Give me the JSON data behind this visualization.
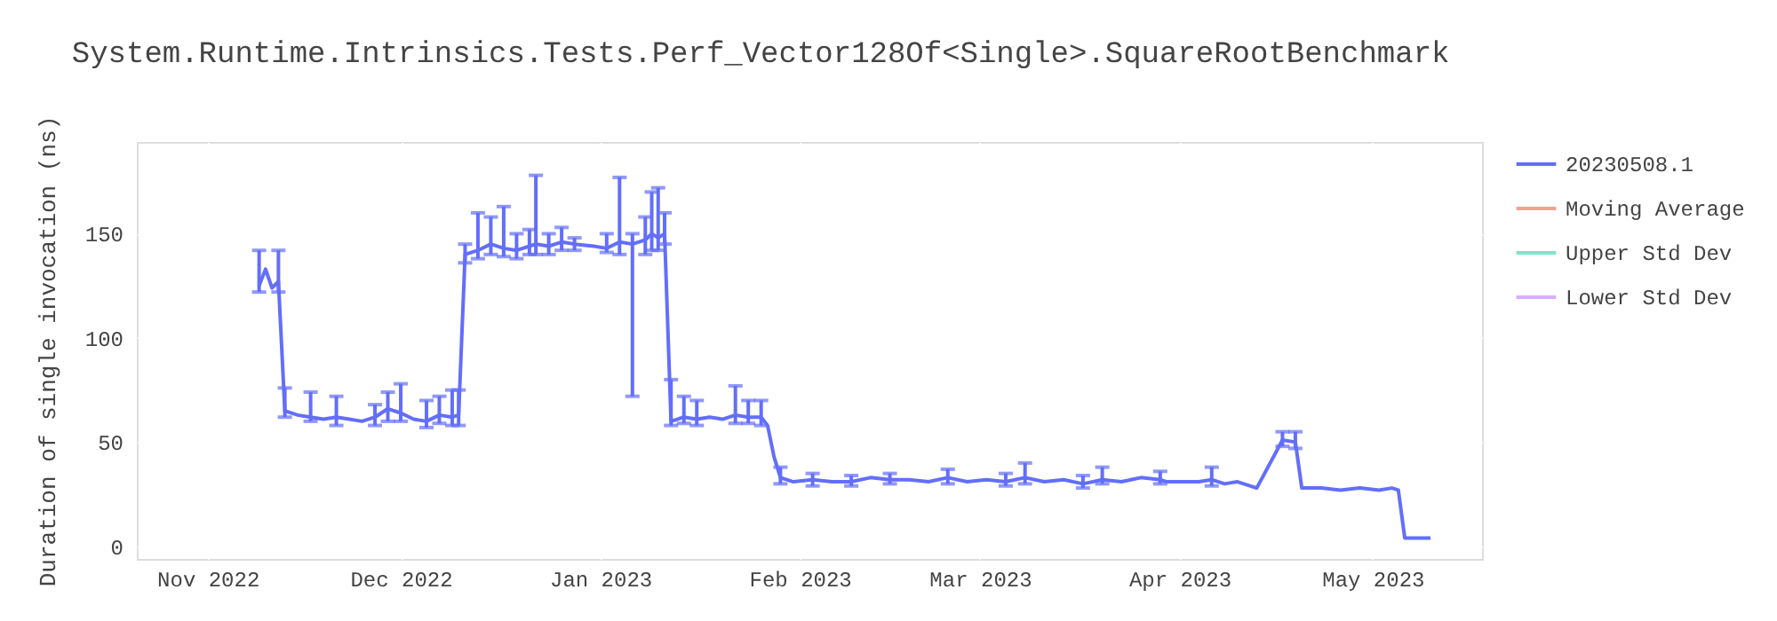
{
  "chart_data": {
    "type": "line",
    "title": "System.Runtime.Intrinsics.Tests.Perf_Vector128Of<Single>.SquareRootBenchmark",
    "ylabel": "Duration of single invocation (ns)",
    "x": [
      "2022-11-09",
      "2022-11-10",
      "2022-11-11",
      "2022-11-12",
      "2022-11-13",
      "2022-11-15",
      "2022-11-17",
      "2022-11-19",
      "2022-11-21",
      "2022-11-23",
      "2022-11-25",
      "2022-11-27",
      "2022-11-29",
      "2022-12-01",
      "2022-12-03",
      "2022-12-05",
      "2022-12-07",
      "2022-12-09",
      "2022-12-10",
      "2022-12-11",
      "2022-12-13",
      "2022-12-15",
      "2022-12-17",
      "2022-12-19",
      "2022-12-21",
      "2022-12-22",
      "2022-12-24",
      "2022-12-26",
      "2022-12-28",
      "2022-12-31",
      "2023-01-02",
      "2023-01-04",
      "2023-01-06",
      "2023-01-08",
      "2023-01-09",
      "2023-01-10",
      "2023-01-11",
      "2023-01-12",
      "2023-01-14",
      "2023-01-16",
      "2023-01-18",
      "2023-01-20",
      "2023-01-22",
      "2023-01-24",
      "2023-01-26",
      "2023-01-27",
      "2023-01-28",
      "2023-01-29",
      "2023-01-31",
      "2023-02-03",
      "2023-02-06",
      "2023-02-09",
      "2023-02-12",
      "2023-02-15",
      "2023-02-18",
      "2023-02-21",
      "2023-02-24",
      "2023-02-27",
      "2023-03-02",
      "2023-03-05",
      "2023-03-08",
      "2023-03-11",
      "2023-03-14",
      "2023-03-17",
      "2023-03-20",
      "2023-03-23",
      "2023-03-26",
      "2023-03-29",
      "2023-03-30",
      "2023-04-04",
      "2023-04-06",
      "2023-04-08",
      "2023-04-10",
      "2023-04-13",
      "2023-04-17",
      "2023-04-19",
      "2023-04-20",
      "2023-04-23",
      "2023-04-26",
      "2023-04-29",
      "2023-05-02",
      "2023-05-04",
      "2023-05-05",
      "2023-05-06",
      "2023-05-08",
      "2023-05-10"
    ],
    "series": [
      {
        "name": "20230508.1",
        "color": "#636efa",
        "values": [
          125,
          133,
          124,
          127,
          65,
          63,
          62,
          61,
          62,
          61,
          60,
          62,
          66,
          64,
          61,
          60,
          63,
          62,
          63,
          140,
          142,
          145,
          143,
          142,
          144,
          145,
          144,
          146,
          145,
          144,
          143,
          146,
          145,
          147,
          150,
          148,
          150,
          60,
          62,
          61,
          62,
          61,
          63,
          62,
          62,
          58,
          43,
          33,
          31,
          32,
          31,
          31,
          33,
          32,
          32,
          31,
          33,
          31,
          32,
          31,
          33,
          31,
          32,
          30,
          32,
          31,
          33,
          32,
          31,
          31,
          32,
          30,
          31,
          28,
          51,
          50,
          28,
          28,
          27,
          28,
          27,
          28,
          27,
          4,
          4,
          4
        ],
        "errors": [
          [
            122,
            142
          ],
          null,
          null,
          [
            122,
            142
          ],
          [
            62,
            76
          ],
          null,
          [
            60,
            74
          ],
          null,
          [
            58,
            72
          ],
          null,
          null,
          [
            58,
            68
          ],
          [
            60,
            74
          ],
          [
            60,
            78
          ],
          null,
          [
            57,
            70
          ],
          [
            59,
            72
          ],
          [
            58,
            75
          ],
          [
            58,
            75
          ],
          [
            136,
            145
          ],
          [
            138,
            160
          ],
          [
            140,
            158
          ],
          [
            139,
            163
          ],
          [
            138,
            150
          ],
          [
            140,
            152
          ],
          [
            140,
            178
          ],
          [
            140,
            150
          ],
          [
            142,
            153
          ],
          [
            142,
            148
          ],
          null,
          [
            141,
            150
          ],
          [
            140,
            177
          ],
          [
            72,
            150
          ],
          [
            140,
            158
          ],
          [
            142,
            170
          ],
          [
            142,
            172
          ],
          [
            145,
            160
          ],
          [
            58,
            80
          ],
          [
            59,
            72
          ],
          [
            58,
            70
          ],
          null,
          null,
          [
            59,
            77
          ],
          [
            59,
            70
          ],
          [
            58,
            70
          ],
          null,
          null,
          [
            30,
            38
          ],
          null,
          [
            29,
            35
          ],
          null,
          [
            29,
            34
          ],
          null,
          [
            30,
            35
          ],
          null,
          null,
          [
            30,
            37
          ],
          null,
          null,
          [
            29,
            35
          ],
          [
            30,
            40
          ],
          null,
          null,
          [
            28,
            34
          ],
          [
            30,
            38
          ],
          null,
          null,
          [
            30,
            36
          ],
          null,
          null,
          [
            29,
            38
          ],
          null,
          null,
          null,
          [
            48,
            55
          ],
          [
            47,
            55
          ],
          null,
          null,
          null,
          null,
          null,
          null,
          null,
          null,
          null,
          null
        ]
      },
      {
        "name": "Moving Average",
        "color": "#f4a08f",
        "values": [
          null,
          null,
          null,
          null,
          null,
          null,
          null,
          null,
          null,
          null,
          null,
          null,
          null,
          null,
          null,
          null,
          null,
          null,
          null,
          null,
          null,
          null,
          null,
          null,
          null,
          null,
          null,
          null,
          null,
          null,
          null,
          null,
          null,
          null,
          null,
          null,
          null,
          null,
          null,
          null,
          null,
          null,
          null,
          null,
          null,
          null,
          null,
          null,
          null,
          null,
          null,
          null,
          null,
          null,
          null,
          null,
          null,
          null,
          null,
          null,
          null,
          null,
          null,
          null,
          null,
          null,
          null,
          null,
          null,
          null,
          null,
          null,
          null,
          null,
          null,
          null,
          null,
          null,
          null,
          null,
          null,
          null,
          null,
          null,
          null,
          null
        ]
      },
      {
        "name": "Upper Std Dev",
        "color": "#7fe5ca",
        "values": [
          null,
          null,
          null,
          null,
          null,
          null,
          null,
          null,
          null,
          null,
          null,
          null,
          null,
          null,
          null,
          null,
          null,
          null,
          null,
          null,
          null,
          null,
          null,
          null,
          null,
          null,
          null,
          null,
          null,
          null,
          null,
          null,
          null,
          null,
          null,
          null,
          null,
          null,
          null,
          null,
          null,
          null,
          null,
          null,
          null,
          null,
          null,
          null,
          null,
          null,
          null,
          null,
          null,
          null,
          null,
          null,
          null,
          null,
          null,
          null,
          null,
          null,
          null,
          null,
          null,
          null,
          null,
          null,
          null,
          null,
          null,
          null,
          null,
          null,
          null,
          null,
          null,
          null,
          null,
          null,
          null,
          null,
          null,
          null,
          null,
          null
        ]
      },
      {
        "name": "Lower Std Dev",
        "color": "#d5b1fd",
        "values": [
          null,
          null,
          null,
          null,
          null,
          null,
          null,
          null,
          null,
          null,
          null,
          null,
          null,
          null,
          null,
          null,
          null,
          null,
          null,
          null,
          null,
          null,
          null,
          null,
          null,
          null,
          null,
          null,
          null,
          null,
          null,
          null,
          null,
          null,
          null,
          null,
          null,
          null,
          null,
          null,
          null,
          null,
          null,
          null,
          null,
          null,
          null,
          null,
          null,
          null,
          null,
          null,
          null,
          null,
          null,
          null,
          null,
          null,
          null,
          null,
          null,
          null,
          null,
          null,
          null,
          null,
          null,
          null,
          null,
          null,
          null,
          null,
          null,
          null,
          null,
          null,
          null,
          null,
          null,
          null,
          null,
          null,
          null,
          null,
          null,
          null
        ]
      }
    ],
    "xlim": [
      "2022-10-21",
      "2023-05-18"
    ],
    "ylim": [
      -6,
      194
    ],
    "xticks": [
      {
        "value": "2022-11-01",
        "label": "Nov 2022"
      },
      {
        "value": "2022-12-01",
        "label": "Dec 2022"
      },
      {
        "value": "2023-01-01",
        "label": "Jan 2023"
      },
      {
        "value": "2023-02-01",
        "label": "Feb 2023"
      },
      {
        "value": "2023-03-01",
        "label": "Mar 2023"
      },
      {
        "value": "2023-04-01",
        "label": "Apr 2023"
      },
      {
        "value": "2023-05-01",
        "label": "May 2023"
      }
    ],
    "yticks": [
      0,
      50,
      100,
      150
    ],
    "grid": true,
    "legend": "top right",
    "marker": "none",
    "line_style": "solid"
  }
}
